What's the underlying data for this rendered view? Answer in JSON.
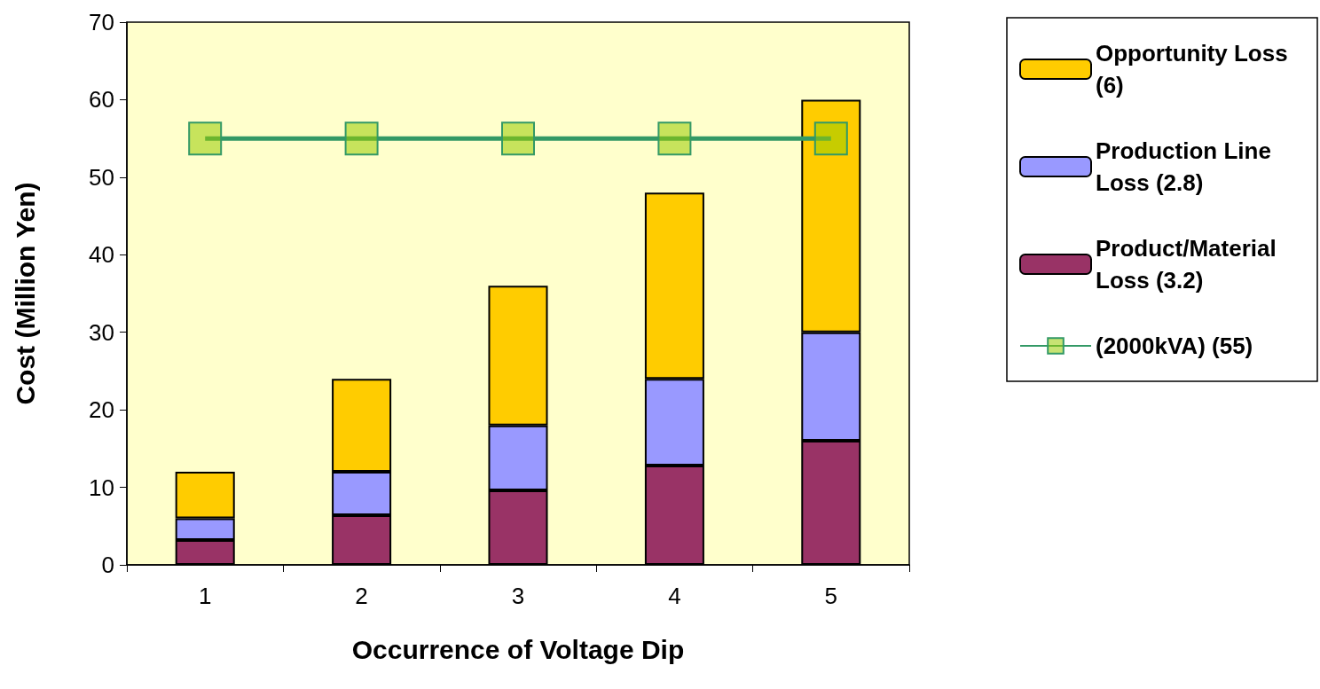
{
  "chart_data": {
    "type": "bar",
    "xlabel": "Occurrence of Voltage Dip",
    "ylabel": "Cost (Million Yen)",
    "categories": [
      "1",
      "2",
      "3",
      "4",
      "5"
    ],
    "stacked": true,
    "ylim": [
      0,
      70
    ],
    "yticks": [
      0,
      10,
      20,
      30,
      40,
      50,
      60,
      70
    ],
    "grid": false,
    "legend": "right",
    "series": [
      {
        "name": "Product/Material Loss (3.2)",
        "color": "#993366",
        "values": [
          3.2,
          6.4,
          9.6,
          12.8,
          16
        ]
      },
      {
        "name": "Production Line Loss (2.8)",
        "color": "#9999ff",
        "values": [
          2.8,
          5.6,
          8.4,
          11.2,
          14
        ]
      },
      {
        "name": "Opportunity Loss (6)",
        "color": "#ffcc00",
        "values": [
          6,
          12,
          18,
          24,
          30
        ]
      },
      {
        "name": "(2000kVA) (55)",
        "type": "line",
        "color": "#339966",
        "marker": "square",
        "values": [
          55,
          55,
          55,
          55,
          55
        ]
      }
    ]
  }
}
